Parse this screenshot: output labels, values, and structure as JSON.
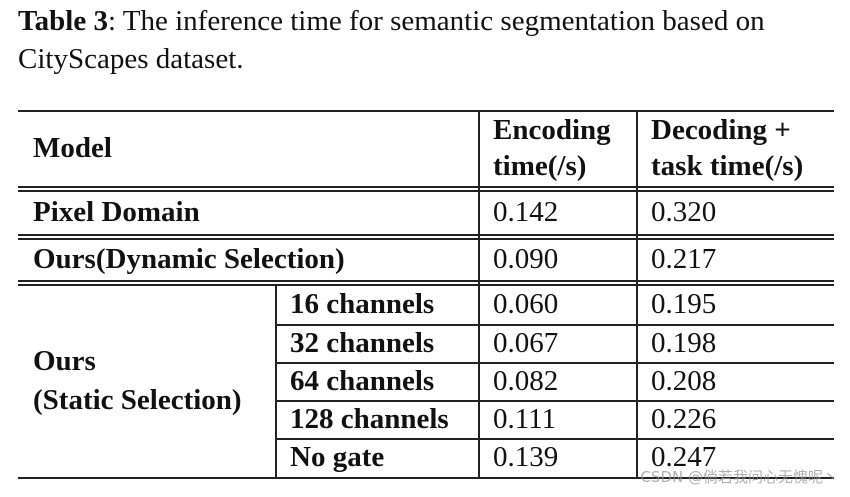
{
  "caption": {
    "label": "Table 3",
    "text": ": The inference time for semantic segmentation based on CityScapes dataset."
  },
  "table": {
    "headers": {
      "model": "Model",
      "encoding_line1": "Encoding",
      "encoding_line2": "time(/s)",
      "decoding_line1": "Decoding +",
      "decoding_line2": "task time(/s)"
    },
    "rows": [
      {
        "model": "Pixel Domain",
        "encoding": "0.142",
        "decoding": "0.320"
      },
      {
        "model": "Ours(Dynamic Selection)",
        "encoding": "0.090",
        "decoding": "0.217"
      }
    ],
    "static_group": {
      "label_line1": "Ours",
      "label_line2": "(Static Selection)",
      "rows": [
        {
          "channels": "16 channels",
          "encoding": "0.060",
          "decoding": "0.195"
        },
        {
          "channels": "32 channels",
          "encoding": "0.067",
          "decoding": "0.198"
        },
        {
          "channels": "64 channels",
          "encoding": "0.082",
          "decoding": "0.208"
        },
        {
          "channels": "128 channels",
          "encoding": "0.111",
          "decoding": "0.226"
        },
        {
          "channels": "No gate",
          "encoding": "0.139",
          "decoding": "0.247"
        }
      ]
    }
  },
  "watermark": "CSDN @倘若我问心无愧呢丶"
}
